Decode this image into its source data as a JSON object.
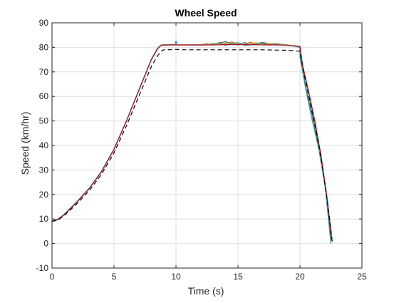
{
  "chart_data": {
    "type": "line",
    "title": "Wheel Speed",
    "xlabel": "Time (s)",
    "ylabel": "Speed (km/hr)",
    "xlim": [
      0,
      25
    ],
    "ylim": [
      -10,
      90
    ],
    "xticks": [
      0,
      5,
      10,
      15,
      20,
      25
    ],
    "yticks": [
      -10,
      0,
      10,
      20,
      30,
      40,
      50,
      60,
      70,
      80,
      90
    ],
    "grid": true,
    "box": true,
    "colors": {
      "axes": "#262626",
      "grid": "#dfdfdf",
      "background": "#ffffff"
    },
    "series": [
      {
        "color": "#1f77b4",
        "style": "solid",
        "points": [
          [
            0,
            9.2
          ],
          [
            0.5,
            10
          ],
          [
            1,
            12
          ],
          [
            1.5,
            14.5
          ],
          [
            2,
            17
          ],
          [
            3,
            22.5
          ],
          [
            4,
            29.5
          ],
          [
            5,
            38.5
          ],
          [
            6,
            50
          ],
          [
            7,
            62.5
          ],
          [
            8,
            75
          ],
          [
            8.5,
            79.5
          ],
          [
            8.8,
            81
          ],
          [
            9.5,
            81.2
          ],
          [
            9.9,
            81
          ],
          [
            10,
            82.5
          ],
          [
            10.1,
            81
          ],
          [
            12,
            81
          ],
          [
            12.5,
            81.3
          ],
          [
            13,
            81.2
          ],
          [
            13.5,
            81.8
          ],
          [
            14,
            82.3
          ],
          [
            14.5,
            81.5
          ],
          [
            15,
            81
          ],
          [
            15.5,
            82
          ],
          [
            16,
            81.2
          ],
          [
            16.5,
            81.5
          ],
          [
            17,
            82
          ],
          [
            17.5,
            81.5
          ],
          [
            18,
            81.5
          ],
          [
            19,
            81
          ],
          [
            20,
            80.2
          ],
          [
            20,
            77
          ],
          [
            20.5,
            63
          ],
          [
            21,
            52
          ],
          [
            21.5,
            40
          ],
          [
            22,
            25
          ],
          [
            22.3,
            10
          ],
          [
            22.5,
            0
          ]
        ]
      },
      {
        "color": "#d95319",
        "style": "solid",
        "points": [
          [
            0,
            9.3
          ],
          [
            0.5,
            10
          ],
          [
            1,
            12
          ],
          [
            1.5,
            14.6
          ],
          [
            2,
            17.1
          ],
          [
            3,
            22.6
          ],
          [
            4,
            29.6
          ],
          [
            5,
            38.6
          ],
          [
            6,
            50.1
          ],
          [
            7,
            62.6
          ],
          [
            8,
            75.1
          ],
          [
            8.5,
            79.6
          ],
          [
            8.8,
            81
          ],
          [
            9.5,
            81.1
          ],
          [
            10,
            81
          ],
          [
            12,
            81
          ],
          [
            12.5,
            81.5
          ],
          [
            13,
            81
          ],
          [
            13.5,
            82
          ],
          [
            14,
            81.3
          ],
          [
            14.5,
            82.2
          ],
          [
            15,
            81.3
          ],
          [
            15.5,
            81.2
          ],
          [
            16,
            82.1
          ],
          [
            16.5,
            81.2
          ],
          [
            17,
            81.8
          ],
          [
            17.5,
            81.2
          ],
          [
            18,
            81.3
          ],
          [
            19,
            81
          ],
          [
            20,
            80.3
          ],
          [
            20.2,
            72
          ],
          [
            20.7,
            61
          ],
          [
            21.2,
            49
          ],
          [
            21.7,
            35
          ],
          [
            22.2,
            18
          ],
          [
            22.5,
            3
          ],
          [
            22.6,
            0.8
          ]
        ]
      },
      {
        "color": "#edb120",
        "style": "solid",
        "points": [
          [
            0,
            9.1
          ],
          [
            0.5,
            9.9
          ],
          [
            1,
            11.9
          ],
          [
            1.5,
            14.4
          ],
          [
            2,
            16.9
          ],
          [
            3,
            22.4
          ],
          [
            4,
            29.4
          ],
          [
            5,
            38.4
          ],
          [
            6,
            49.9
          ],
          [
            7,
            62.4
          ],
          [
            8,
            74.9
          ],
          [
            8.5,
            79.4
          ],
          [
            8.8,
            81
          ],
          [
            9.5,
            81
          ],
          [
            10,
            81
          ],
          [
            12,
            81
          ],
          [
            12.5,
            81.2
          ],
          [
            13,
            81.6
          ],
          [
            13.5,
            81
          ],
          [
            14,
            81.9
          ],
          [
            14.5,
            81.2
          ],
          [
            15,
            81.8
          ],
          [
            15.5,
            81
          ],
          [
            16,
            81.5
          ],
          [
            16.5,
            81.9
          ],
          [
            17,
            81.1
          ],
          [
            17.5,
            81.7
          ],
          [
            18,
            81.2
          ],
          [
            19,
            81
          ],
          [
            20,
            80.1
          ],
          [
            20.3,
            70
          ],
          [
            20.8,
            59
          ],
          [
            21.3,
            47
          ],
          [
            21.8,
            32
          ],
          [
            22.3,
            14
          ],
          [
            22.6,
            2
          ]
        ]
      },
      {
        "color": "#2a9d8f",
        "style": "solid",
        "points": [
          [
            0,
            9.2
          ],
          [
            0.5,
            10
          ],
          [
            1,
            12
          ],
          [
            1.5,
            14.5
          ],
          [
            2,
            17
          ],
          [
            3,
            22.5
          ],
          [
            4,
            29.5
          ],
          [
            5,
            38.5
          ],
          [
            6,
            50
          ],
          [
            7,
            62.5
          ],
          [
            8,
            75
          ],
          [
            8.5,
            79.5
          ],
          [
            8.8,
            80.9
          ],
          [
            9.5,
            81
          ],
          [
            10,
            81
          ],
          [
            12,
            80.9
          ],
          [
            12.5,
            81
          ],
          [
            13,
            81.4
          ],
          [
            13.5,
            81.6
          ],
          [
            14,
            80.8
          ],
          [
            14.5,
            81.6
          ],
          [
            15,
            81.9
          ],
          [
            15.5,
            80.8
          ],
          [
            16,
            81
          ],
          [
            16.5,
            81.4
          ],
          [
            17,
            81.6
          ],
          [
            17.5,
            80.9
          ],
          [
            18,
            81.1
          ],
          [
            19,
            80.9
          ],
          [
            20,
            80
          ],
          [
            20,
            76
          ],
          [
            20.5,
            62
          ],
          [
            21,
            50
          ],
          [
            21.5,
            39
          ],
          [
            22,
            24
          ],
          [
            22.4,
            8
          ],
          [
            22.5,
            0
          ]
        ]
      },
      {
        "color": "#a2142f",
        "style": "solid",
        "points": [
          [
            0,
            9
          ],
          [
            0.5,
            9.8
          ],
          [
            1,
            11.8
          ],
          [
            1.5,
            14.3
          ],
          [
            2,
            16.8
          ],
          [
            3,
            22.3
          ],
          [
            4,
            29.3
          ],
          [
            5,
            38.3
          ],
          [
            6,
            49.8
          ],
          [
            7,
            62.3
          ],
          [
            8,
            74.8
          ],
          [
            8.5,
            79.3
          ],
          [
            8.8,
            80.8
          ],
          [
            9.5,
            81
          ],
          [
            10,
            81
          ],
          [
            12,
            81
          ],
          [
            13,
            81
          ],
          [
            14,
            81.1
          ],
          [
            15,
            81.1
          ],
          [
            16,
            81.1
          ],
          [
            17,
            81
          ],
          [
            18,
            81
          ],
          [
            19,
            80.8
          ],
          [
            20,
            80.4
          ],
          [
            20.2,
            73
          ],
          [
            20.7,
            62
          ],
          [
            21.2,
            50
          ],
          [
            21.7,
            36
          ],
          [
            22.2,
            18
          ],
          [
            22.5,
            4
          ],
          [
            22.6,
            1
          ]
        ]
      },
      {
        "color": "#000000",
        "style": "dashed",
        "points": [
          [
            0,
            9
          ],
          [
            0.5,
            9.6
          ],
          [
            1,
            11.5
          ],
          [
            1.5,
            13.8
          ],
          [
            2,
            16.2
          ],
          [
            3,
            21.5
          ],
          [
            4,
            28.3
          ],
          [
            5,
            37
          ],
          [
            6,
            48
          ],
          [
            7,
            60
          ],
          [
            8,
            72
          ],
          [
            8.5,
            76.5
          ],
          [
            8.9,
            78.8
          ],
          [
            9.2,
            79.2
          ],
          [
            9.5,
            79
          ],
          [
            10,
            79.2
          ],
          [
            10.5,
            79
          ],
          [
            11,
            79
          ],
          [
            12,
            79
          ],
          [
            13,
            79
          ],
          [
            14,
            79
          ],
          [
            15,
            79
          ],
          [
            16,
            79
          ],
          [
            17,
            79
          ],
          [
            18,
            78.9
          ],
          [
            19,
            78.8
          ],
          [
            20,
            78.4
          ],
          [
            20.3,
            70
          ],
          [
            20.8,
            58
          ],
          [
            21.3,
            46
          ],
          [
            21.8,
            32
          ],
          [
            22.3,
            14
          ],
          [
            22.6,
            1
          ]
        ]
      }
    ]
  }
}
